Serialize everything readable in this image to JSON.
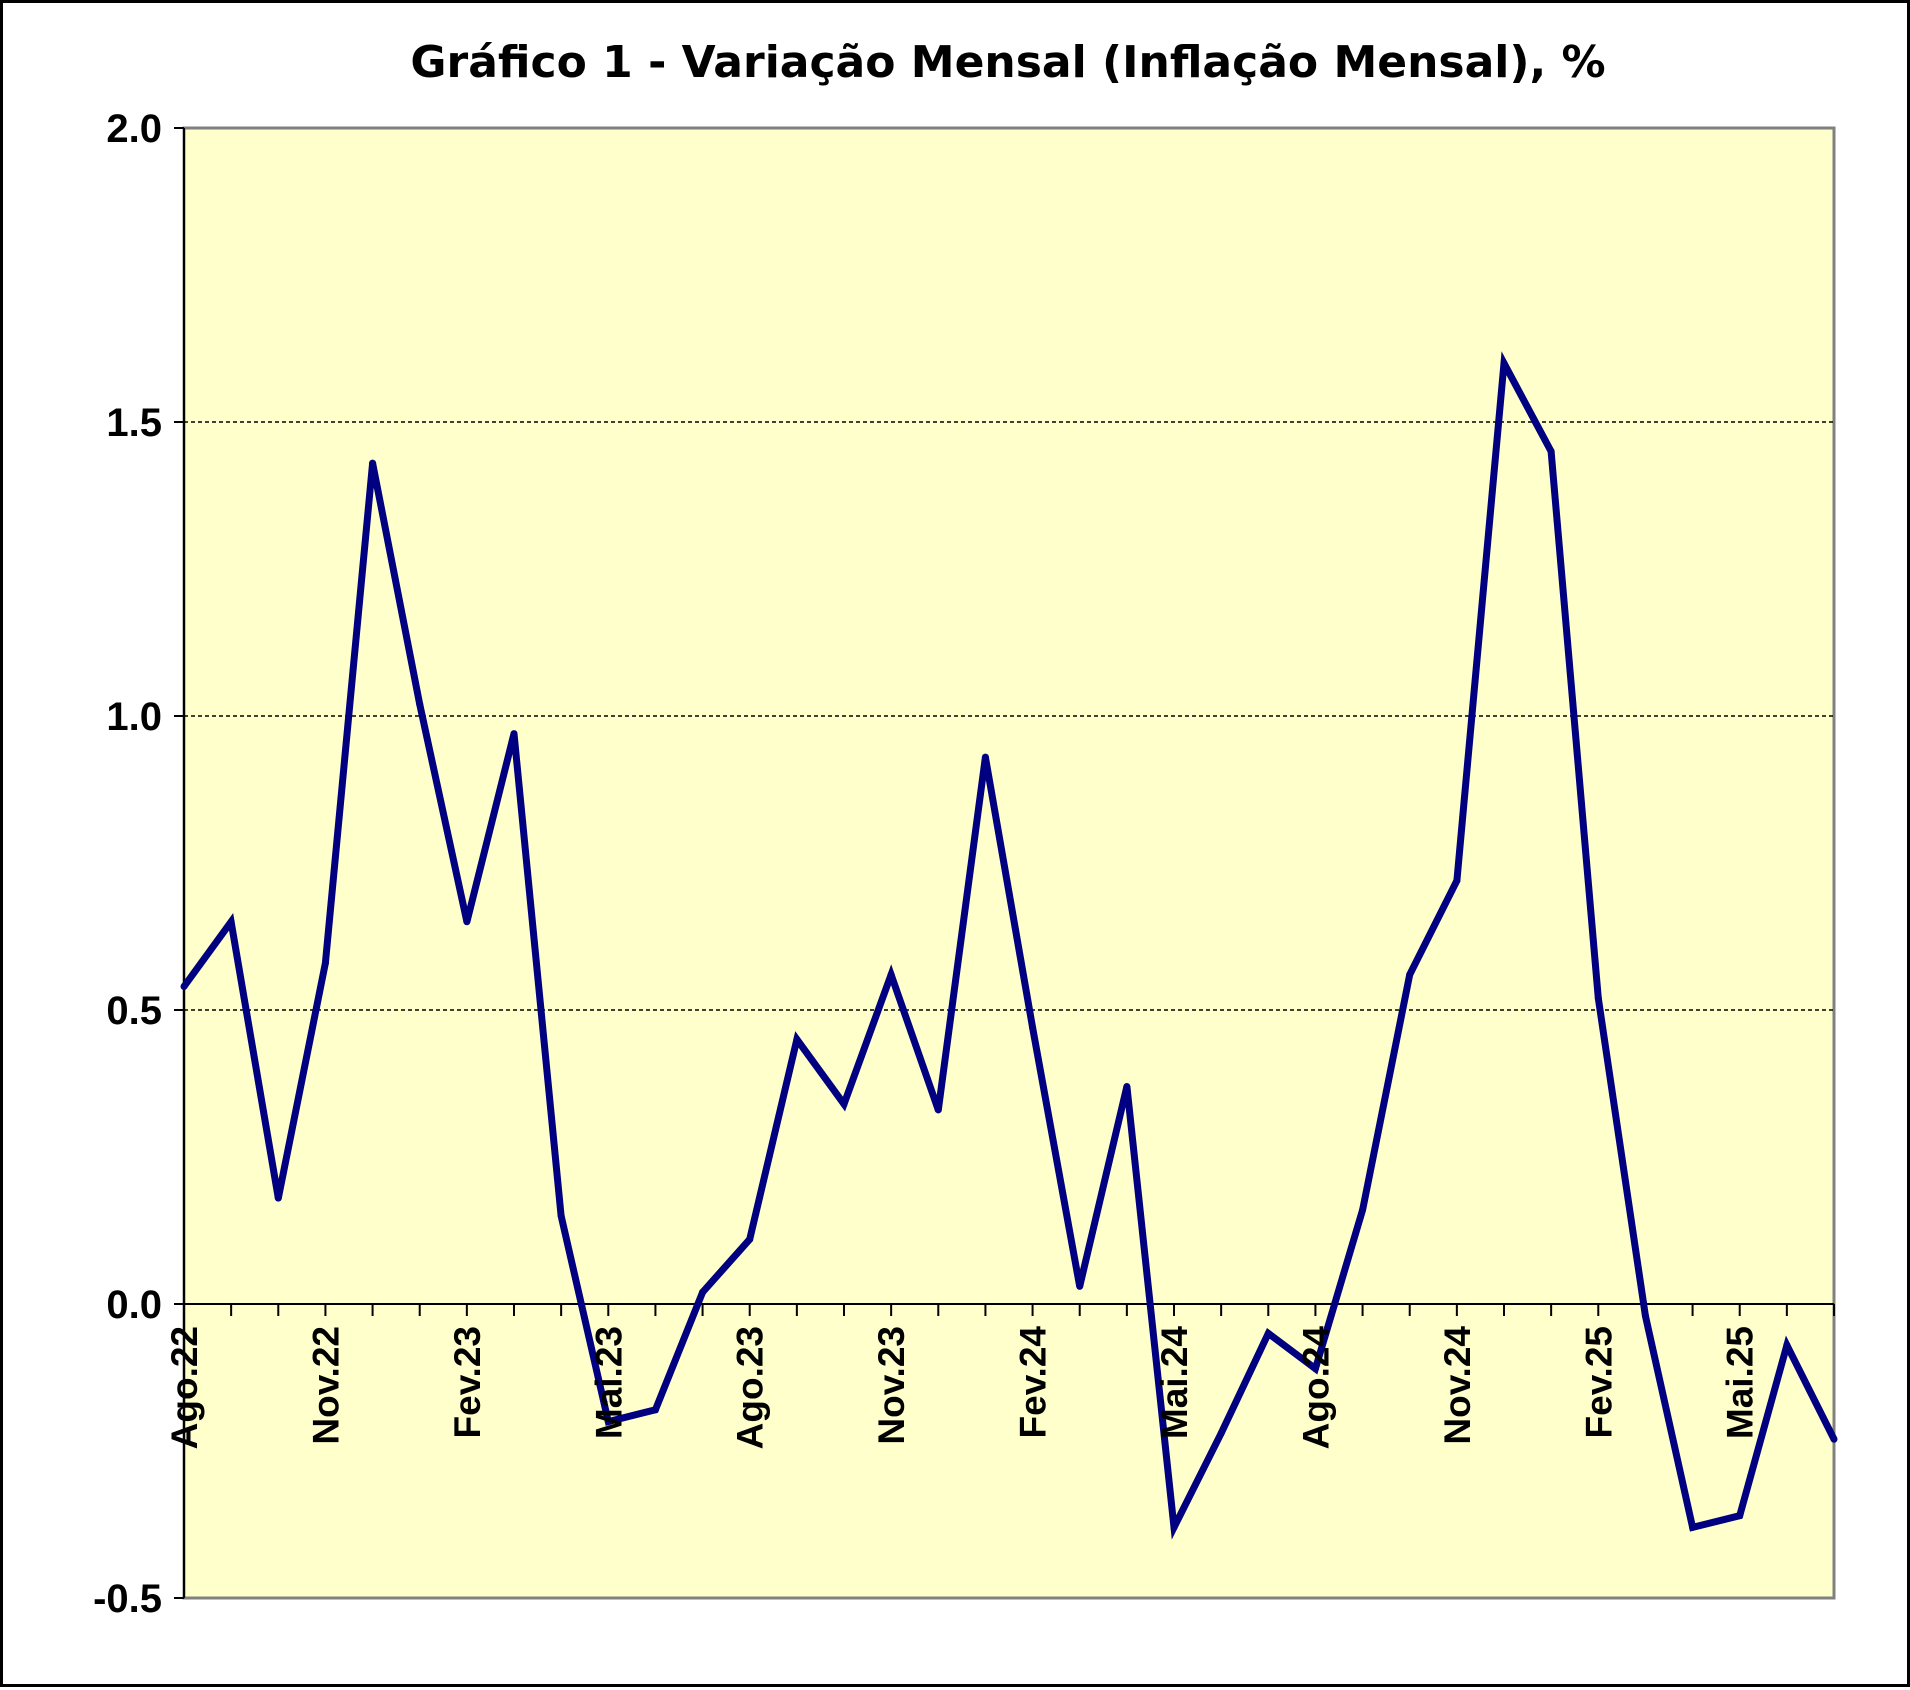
{
  "chart_data": {
    "type": "line",
    "title": "Gráfico 1 - Variação Mensal (Inflação Mensal), %",
    "xlabel": "",
    "ylabel": "",
    "ylim": [
      -0.5,
      2.0
    ],
    "yticks": [
      "-0.5",
      "0.0",
      "0.5",
      "1.0",
      "1.5",
      "2.0"
    ],
    "ytick_values": [
      -0.5,
      0.0,
      0.5,
      1.0,
      1.5,
      2.0
    ],
    "gridlines_at": [
      0.5,
      1.0,
      1.5
    ],
    "grid": "dashed horizontal",
    "legend": "none",
    "x": [
      "Ago.22",
      "Set.22",
      "Out.22",
      "Nov.22",
      "Dez.22",
      "Jan.23",
      "Fev.23",
      "Mar.23",
      "Abr.23",
      "Mai.23",
      "Jun.23",
      "Jul.23",
      "Ago.23",
      "Set.23",
      "Out.23",
      "Nov.23",
      "Dez.23",
      "Jan.24",
      "Fev.24",
      "Mar.24",
      "Abr.24",
      "Mai.24",
      "Jun.24",
      "Jul.24",
      "Ago.24",
      "Set.24",
      "Out.24",
      "Nov.24",
      "Dez.24",
      "Jan.25",
      "Fev.25",
      "Mar.25",
      "Abr.25",
      "Mai.25",
      "Jun.25",
      "Jul.25"
    ],
    "x_tick_labels": [
      "Ago.22",
      "Nov.22",
      "Fev.23",
      "Mai.23",
      "Ago.23",
      "Nov.23",
      "Fev.24",
      "Mai.24",
      "Ago.24",
      "Nov.24",
      "Fev.25",
      "Mai.25"
    ],
    "series": [
      {
        "values": [
          0.54,
          0.65,
          0.18,
          0.58,
          1.43,
          1.02,
          0.65,
          0.97,
          0.15,
          -0.2,
          -0.18,
          0.02,
          0.11,
          0.45,
          0.34,
          0.56,
          0.33,
          0.93,
          0.47,
          0.03,
          0.37,
          -0.38,
          -0.22,
          -0.05,
          -0.11,
          0.16,
          0.56,
          0.72,
          1.6,
          1.45,
          0.52,
          -0.02,
          -0.38,
          -0.36,
          -0.07,
          -0.23
        ],
        "color": "#000080"
      }
    ],
    "colors": {
      "plot_background": "#ffffcc",
      "line": "#000080",
      "grid": "#000000",
      "axis": "#000000"
    }
  }
}
